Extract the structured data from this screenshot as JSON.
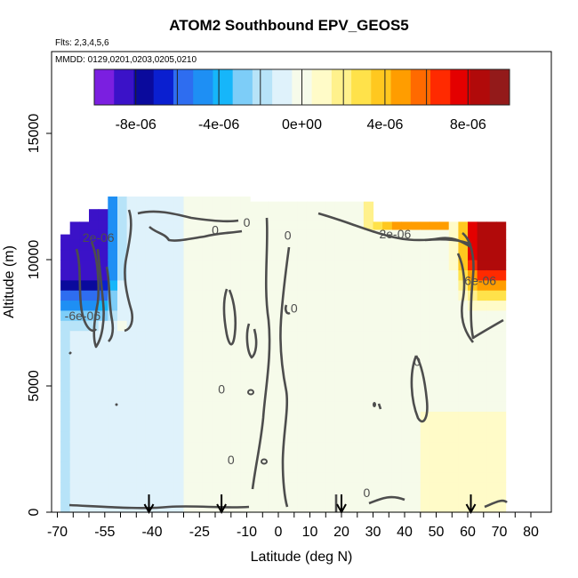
{
  "chart_data": {
    "type": "heatmap",
    "title": "ATOM2 Southbound EPV_GEOS5",
    "subtitle_lines": [
      "Flts: 2,3,4,5,6",
      "MMDD: 0129,0201,0203,0205,0210"
    ],
    "xlabel": "Latitude (deg N)",
    "ylabel": "Altitude (m)",
    "xlim": [
      -70,
      80
    ],
    "ylim": [
      0,
      17000
    ],
    "x_ticks": [
      -70,
      -55,
      -40,
      -25,
      -10,
      0,
      10,
      20,
      30,
      40,
      50,
      60,
      70,
      80
    ],
    "y_ticks": [
      0,
      5000,
      10000,
      15000
    ],
    "colorbar": {
      "range": [
        -1e-05,
        1e-05
      ],
      "tick_values": [
        -8e-06,
        -4e-06,
        0,
        4e-06,
        8e-06
      ],
      "tick_labels": [
        "-8e-06",
        "-4e-06",
        "0e+00",
        "4e-06",
        "8e-06"
      ],
      "colors": [
        "#7b1fe0",
        "#3b12c8",
        "#0a0a9c",
        "#0a1fd0",
        "#2e6df0",
        "#1e8ff4",
        "#16b6fa",
        "#7dcdf8",
        "#b7e3f8",
        "#dff2fb",
        "#f6fbea",
        "#fffbc8",
        "#fff18c",
        "#ffe24a",
        "#ffc81f",
        "#ff9d00",
        "#ff6a00",
        "#ff2a00",
        "#e40000",
        "#b10a0a",
        "#931a1a"
      ]
    },
    "contour_labels": [
      {
        "text": "0",
        "lat": -10,
        "alt": 11300
      },
      {
        "text": "0",
        "lat": -20,
        "alt": 11000
      },
      {
        "text": "0",
        "lat": 3,
        "alt": 10800
      },
      {
        "text": "0",
        "lat": 5,
        "alt": 7900
      },
      {
        "text": "0",
        "lat": 44,
        "alt": 5800
      },
      {
        "text": "0",
        "lat": -18,
        "alt": 4700
      },
      {
        "text": "0",
        "lat": -15,
        "alt": 1900
      },
      {
        "text": "0",
        "lat": 28,
        "alt": 600
      },
      {
        "text": "2e-06",
        "lat": 37,
        "alt": 10850
      },
      {
        "text": "2e-06",
        "lat": -57,
        "alt": 10700
      },
      {
        "text": "6e-06",
        "lat": 64,
        "alt": 9000
      },
      {
        "text": "-6e-06",
        "lat": -62,
        "alt": 7600
      }
    ],
    "flight_markers_lat": [
      -41,
      -18,
      20,
      61
    ]
  }
}
